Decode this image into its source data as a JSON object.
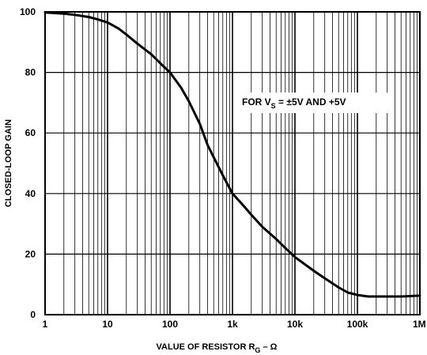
{
  "chart_data": {
    "type": "line",
    "xscale": "log",
    "xlim": [
      1,
      1000000
    ],
    "ylim": [
      0,
      100
    ],
    "xticks": [
      {
        "value": 1,
        "label": "1"
      },
      {
        "value": 10,
        "label": "10"
      },
      {
        "value": 100,
        "label": "100"
      },
      {
        "value": 1000,
        "label": "1k"
      },
      {
        "value": 10000,
        "label": "10k"
      },
      {
        "value": 100000,
        "label": "100k"
      },
      {
        "value": 1000000,
        "label": "1M"
      }
    ],
    "yticks": [
      {
        "value": 0,
        "label": "0"
      },
      {
        "value": 20,
        "label": "20"
      },
      {
        "value": 40,
        "label": "40"
      },
      {
        "value": 60,
        "label": "60"
      },
      {
        "value": 80,
        "label": "80"
      },
      {
        "value": 100,
        "label": "100"
      }
    ],
    "xlabel": {
      "main": "VALUE OF RESISTOR R",
      "sub": "G",
      "tail": " – Ω"
    },
    "ylabel": "CLOSED-LOOP GAIN",
    "grid": true,
    "annotation": {
      "pre": "FOR V",
      "sub": "S",
      "post": " = ±5V AND +5V"
    },
    "series": [
      {
        "points": [
          [
            1,
            99.8
          ],
          [
            2,
            99.4
          ],
          [
            3,
            99
          ],
          [
            5,
            98.3
          ],
          [
            7,
            97.5
          ],
          [
            10,
            96.5
          ],
          [
            15,
            94.5
          ],
          [
            20,
            92.5
          ],
          [
            30,
            89.5
          ],
          [
            50,
            86
          ],
          [
            70,
            83
          ],
          [
            100,
            80
          ],
          [
            150,
            75
          ],
          [
            200,
            70.5
          ],
          [
            300,
            63
          ],
          [
            400,
            56
          ],
          [
            500,
            52
          ],
          [
            700,
            46
          ],
          [
            1000,
            40
          ],
          [
            1500,
            36
          ],
          [
            2000,
            33
          ],
          [
            3000,
            29
          ],
          [
            5000,
            25
          ],
          [
            7000,
            22
          ],
          [
            10000,
            19
          ],
          [
            20000,
            14.5
          ],
          [
            30000,
            12
          ],
          [
            50000,
            9
          ],
          [
            70000,
            7.3
          ],
          [
            100000,
            6.5
          ],
          [
            150000,
            6
          ],
          [
            200000,
            6
          ],
          [
            500000,
            6
          ],
          [
            1000000,
            6.3
          ]
        ]
      }
    ]
  }
}
